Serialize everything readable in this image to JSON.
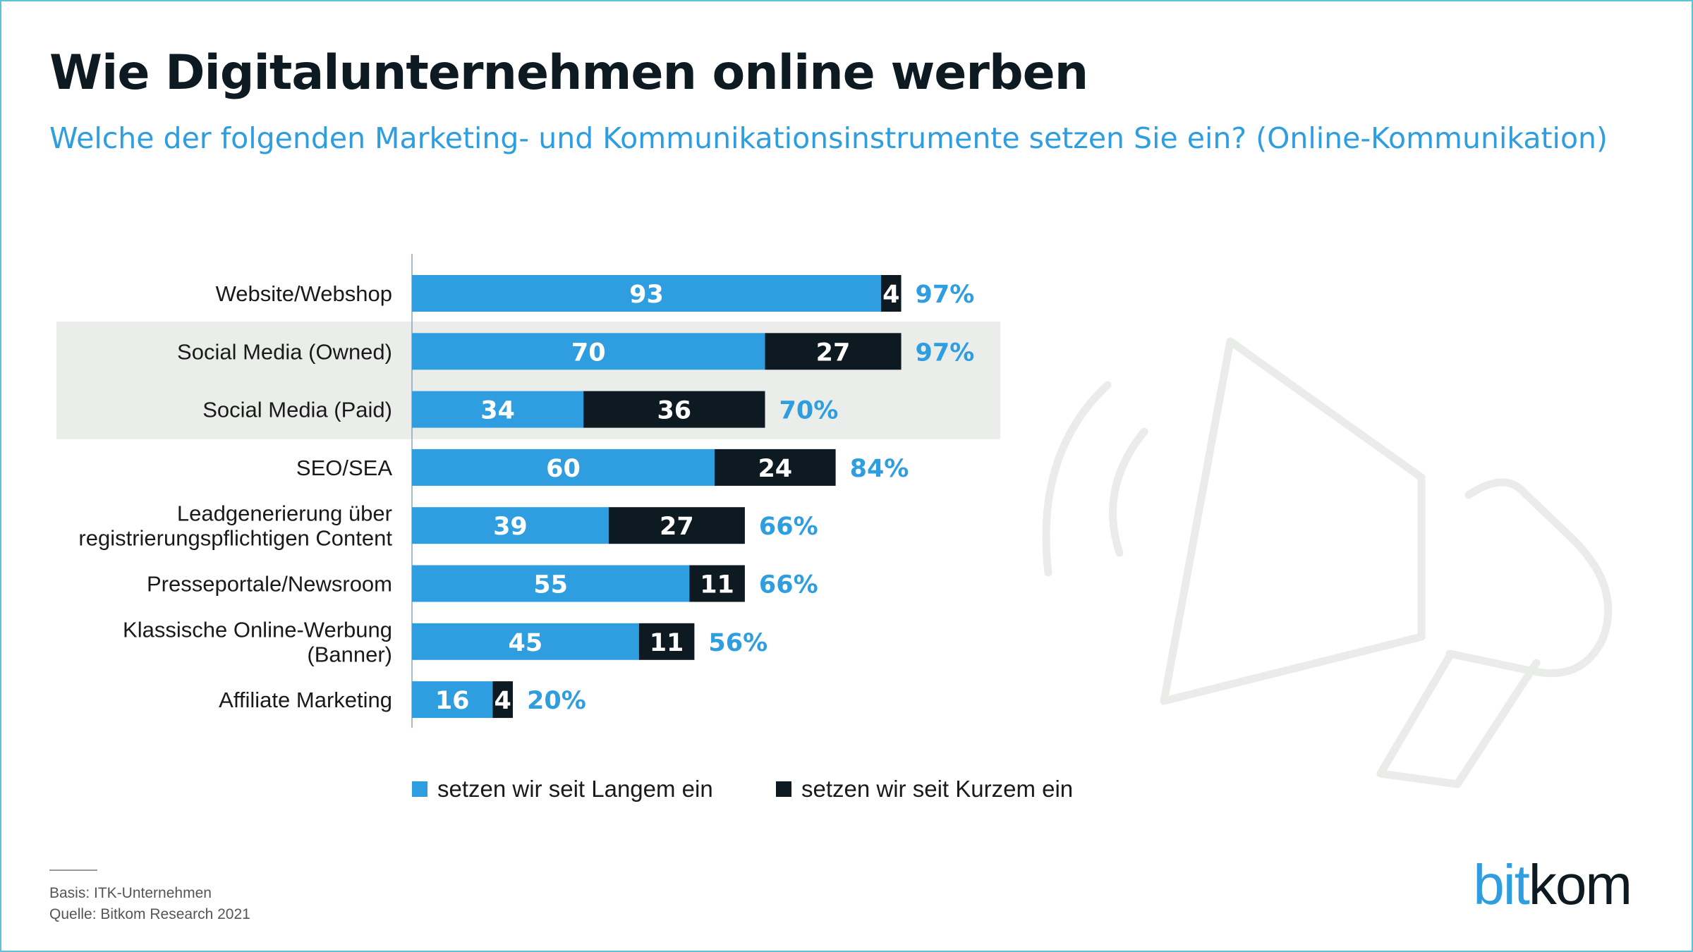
{
  "title": "Wie Digitalunternehmen online werben",
  "subtitle": "Welche der folgenden Marketing- und Kommunikationsinstrumente setzen Sie ein? (Online-Kommunikation)",
  "footer": {
    "basis": "Basis: ITK-Unternehmen",
    "source": "Quelle: Bitkom Research 2021"
  },
  "logo": {
    "part1": "bit",
    "part2": "kom"
  },
  "colors": {
    "long": "#2e9ee0",
    "short": "#0e1a22",
    "total": "#2e9ee0",
    "highlight": "#eaedea",
    "text": "#1a1a1a"
  },
  "chart_data": {
    "type": "bar",
    "orientation": "horizontal",
    "stacked": true,
    "categories": [
      [
        "Website/Webshop"
      ],
      [
        "Social Media (Owned)"
      ],
      [
        "Social Media (Paid)"
      ],
      [
        "SEO/SEA"
      ],
      [
        "Leadgenerierung über",
        "registrierungspflichtigen Content"
      ],
      [
        "Presseportale/Newsroom"
      ],
      [
        "Klassische Online-Werbung",
        "(Banner)"
      ],
      [
        "Affiliate Marketing"
      ]
    ],
    "series": [
      {
        "name": "setzen wir seit Langem ein",
        "values": [
          93,
          70,
          34,
          60,
          39,
          55,
          45,
          16
        ]
      },
      {
        "name": "setzen wir seit Kurzem ein",
        "values": [
          4,
          27,
          36,
          24,
          27,
          11,
          11,
          4
        ]
      }
    ],
    "totals": [
      "97%",
      "97%",
      "70%",
      "84%",
      "66%",
      "66%",
      "56%",
      "20%"
    ],
    "highlighted_categories": [
      1,
      2
    ],
    "xlim": [
      0,
      100
    ],
    "grid": false,
    "legend_position": "bottom"
  }
}
